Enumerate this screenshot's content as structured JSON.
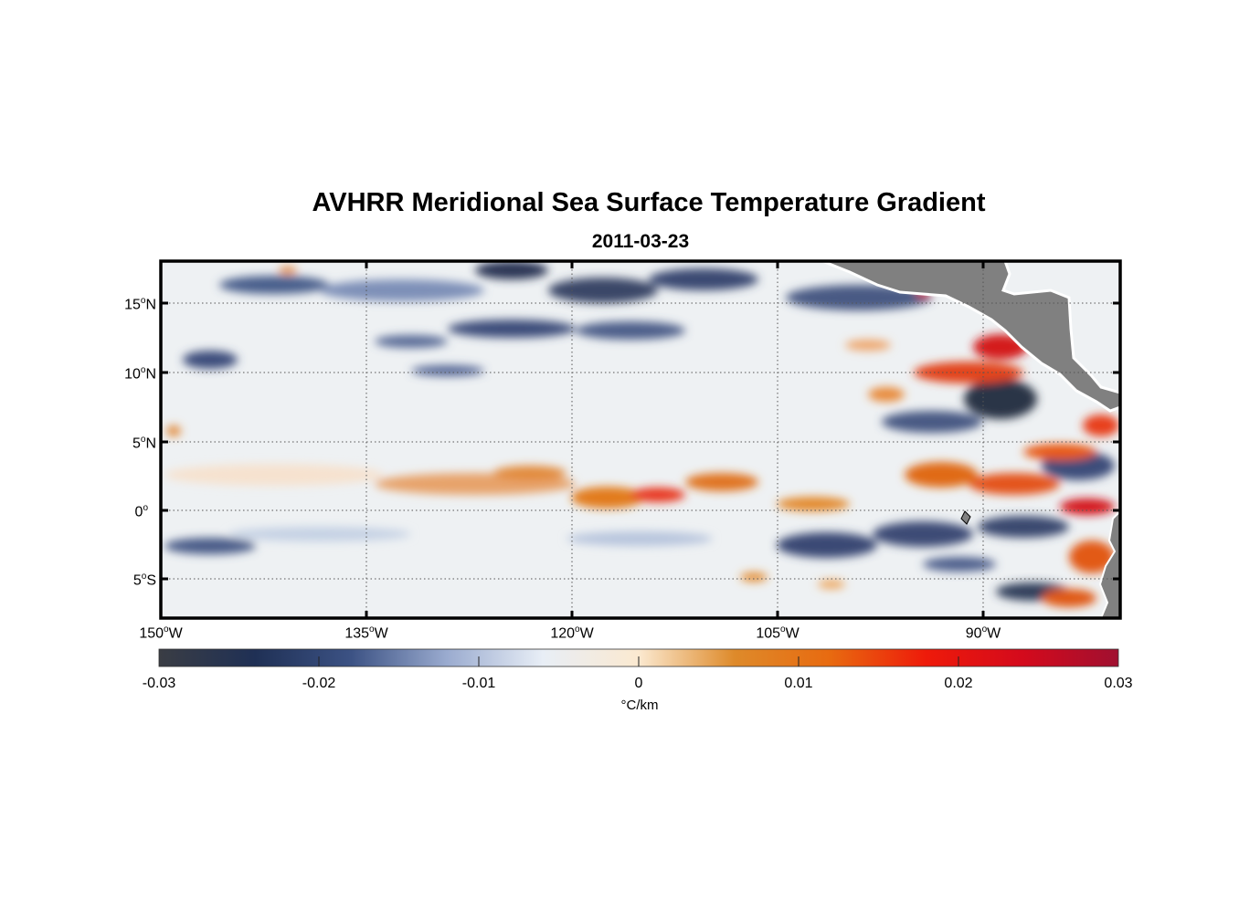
{
  "title": "AVHRR Meridional Sea Surface Temperature Gradient",
  "subtitle": "2011-03-23",
  "map": {
    "lon_range": [
      -150,
      -80
    ],
    "lat_range": [
      -8,
      18
    ],
    "colors": {
      "land": "#808080",
      "coast": "#ffffff",
      "frame": "#000000",
      "grid": "#555555"
    },
    "lat_ticks": [
      {
        "deg": "15",
        "hemi": "N",
        "value": 15
      },
      {
        "deg": "10",
        "hemi": "N",
        "value": 10
      },
      {
        "deg": "5",
        "hemi": "N",
        "value": 5
      },
      {
        "deg": "0",
        "hemi": "",
        "value": 0
      },
      {
        "deg": "5",
        "hemi": "S",
        "value": -5
      }
    ],
    "lon_ticks": [
      {
        "deg": "150",
        "hemi": "W",
        "value": -150
      },
      {
        "deg": "135",
        "hemi": "W",
        "value": -135
      },
      {
        "deg": "120",
        "hemi": "W",
        "value": -120
      },
      {
        "deg": "105",
        "hemi": "W",
        "value": -105
      },
      {
        "deg": "90",
        "hemi": "W",
        "value": -90
      }
    ]
  },
  "colorbar": {
    "range": [
      -0.03,
      0.03
    ],
    "ticks": [
      "-0.03",
      "-0.02",
      "-0.01",
      "0",
      "0.01",
      "0.02",
      "0.03"
    ],
    "unit": "°C/km",
    "stops": [
      "#3a3d44",
      "#1f3055",
      "#3c5284",
      "#9aabcf",
      "#e8eef6",
      "#fbe9d0",
      "#de8a2a",
      "#e86a10",
      "#ee1a0a",
      "#d40a1c",
      "#a01030"
    ]
  }
}
